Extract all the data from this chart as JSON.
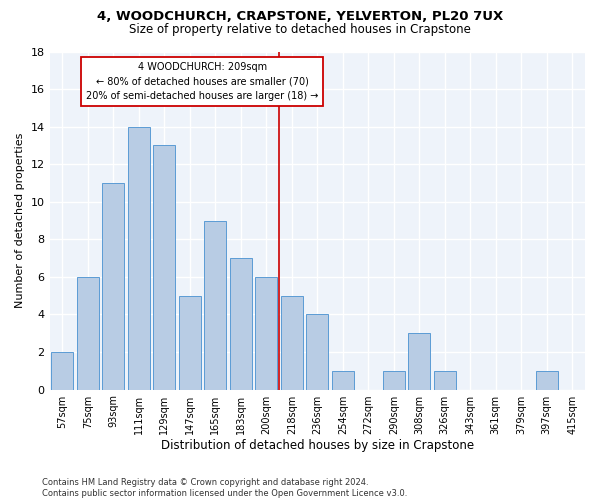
{
  "title": "4, WOODCHURCH, CRAPSTONE, YELVERTON, PL20 7UX",
  "subtitle": "Size of property relative to detached houses in Crapstone",
  "xlabel": "Distribution of detached houses by size in Crapstone",
  "ylabel": "Number of detached properties",
  "bar_color": "#b8cce4",
  "bar_edge_color": "#5b9bd5",
  "background_color": "#eef3fa",
  "grid_color": "#ffffff",
  "categories": [
    "57sqm",
    "75sqm",
    "93sqm",
    "111sqm",
    "129sqm",
    "147sqm",
    "165sqm",
    "183sqm",
    "200sqm",
    "218sqm",
    "236sqm",
    "254sqm",
    "272sqm",
    "290sqm",
    "308sqm",
    "326sqm",
    "343sqm",
    "361sqm",
    "379sqm",
    "397sqm",
    "415sqm"
  ],
  "values": [
    2,
    6,
    11,
    14,
    13,
    5,
    9,
    7,
    6,
    5,
    4,
    1,
    0,
    1,
    3,
    1,
    0,
    0,
    0,
    1,
    0
  ],
  "vline_x": 8.5,
  "vline_color": "#cc0000",
  "annotation_text": "4 WOODCHURCH: 209sqm\n← 80% of detached houses are smaller (70)\n20% of semi-detached houses are larger (18) →",
  "annotation_box_color": "#cc0000",
  "ylim": [
    0,
    18
  ],
  "yticks": [
    0,
    2,
    4,
    6,
    8,
    10,
    12,
    14,
    16,
    18
  ],
  "footer": "Contains HM Land Registry data © Crown copyright and database right 2024.\nContains public sector information licensed under the Open Government Licence v3.0.",
  "title_fontsize": 9.5,
  "subtitle_fontsize": 8.5,
  "ylabel_fontsize": 8,
  "xlabel_fontsize": 8.5,
  "tick_fontsize": 7,
  "annotation_fontsize": 7,
  "footer_fontsize": 6
}
